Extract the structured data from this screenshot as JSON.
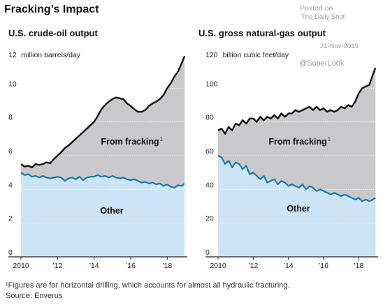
{
  "title": "Fracking’s Impact",
  "watermark": {
    "posted": "Posted on",
    "via": "The Daily Shot",
    "date": "21-Nov-2019",
    "handle": "@SoberLook"
  },
  "footnote": "¹Figures are for horizontal drilling, which accounts for almost all hydraulic fracturing.",
  "source": "Source: Enverus",
  "colors": {
    "fracking_area": "#c9c9cb",
    "other_area": "#cde4f6",
    "total_line": "#111111",
    "other_line": "#1c78b0",
    "axis": "#222222",
    "grid": "#ffffff"
  },
  "chart_data": [
    {
      "type": "area",
      "title": "U.S. crude-oil output",
      "unit_label": "million barrels/day",
      "ylim": [
        0,
        12
      ],
      "yticks": [
        0,
        2,
        4,
        6,
        8,
        10,
        12
      ],
      "xlim": [
        2010,
        2019.1
      ],
      "xticks": [
        2010,
        2012,
        2014,
        2016,
        2018
      ],
      "xtick_labels": [
        "2010",
        "’12",
        "’14",
        "’16",
        "’18"
      ],
      "area_labels": {
        "upper": "From fracking",
        "upper_sup": "1",
        "lower": "Other"
      },
      "series": [
        {
          "name": "From fracking",
          "x": [
            2010.0,
            2010.2,
            2010.4,
            2010.6,
            2010.8,
            2011.0,
            2011.2,
            2011.4,
            2011.6,
            2011.8,
            2012.0,
            2012.2,
            2012.4,
            2012.6,
            2012.8,
            2013.0,
            2013.2,
            2013.4,
            2013.6,
            2013.8,
            2014.0,
            2014.2,
            2014.4,
            2014.6,
            2014.8,
            2015.0,
            2015.2,
            2015.4,
            2015.6,
            2015.8,
            2016.0,
            2016.2,
            2016.4,
            2016.6,
            2016.8,
            2017.0,
            2017.2,
            2017.4,
            2017.6,
            2017.8,
            2018.0,
            2018.2,
            2018.4,
            2018.6,
            2018.8,
            2018.95
          ],
          "values": [
            5.5,
            5.35,
            5.4,
            5.3,
            5.5,
            5.45,
            5.5,
            5.6,
            5.55,
            5.8,
            6.0,
            6.2,
            6.45,
            6.6,
            6.8,
            7.0,
            7.2,
            7.4,
            7.6,
            7.8,
            8.0,
            8.35,
            8.75,
            9.0,
            9.2,
            9.35,
            9.45,
            9.4,
            9.35,
            9.1,
            8.95,
            8.75,
            8.6,
            8.6,
            8.7,
            8.95,
            9.1,
            9.2,
            9.35,
            9.6,
            10.0,
            10.3,
            10.7,
            11.0,
            11.5,
            11.9
          ]
        },
        {
          "name": "Other",
          "x": [
            2010.0,
            2010.2,
            2010.4,
            2010.6,
            2010.8,
            2011.0,
            2011.2,
            2011.4,
            2011.6,
            2011.8,
            2012.0,
            2012.2,
            2012.4,
            2012.6,
            2012.8,
            2013.0,
            2013.2,
            2013.4,
            2013.6,
            2013.8,
            2014.0,
            2014.2,
            2014.4,
            2014.6,
            2014.8,
            2015.0,
            2015.2,
            2015.4,
            2015.6,
            2015.8,
            2016.0,
            2016.2,
            2016.4,
            2016.6,
            2016.8,
            2017.0,
            2017.2,
            2017.4,
            2017.6,
            2017.8,
            2018.0,
            2018.2,
            2018.4,
            2018.6,
            2018.8,
            2018.95
          ],
          "values": [
            5.0,
            4.85,
            4.9,
            4.75,
            4.8,
            4.7,
            4.8,
            4.7,
            4.65,
            4.7,
            4.75,
            4.7,
            4.5,
            4.65,
            4.7,
            4.6,
            4.75,
            4.55,
            4.7,
            4.75,
            4.75,
            4.85,
            4.75,
            4.8,
            4.7,
            4.8,
            4.7,
            4.65,
            4.7,
            4.6,
            4.55,
            4.6,
            4.5,
            4.4,
            4.45,
            4.35,
            4.4,
            4.3,
            4.35,
            4.2,
            4.3,
            4.15,
            4.1,
            4.25,
            4.2,
            4.35
          ]
        }
      ]
    },
    {
      "type": "area",
      "title": "U.S. gross natural-gas output",
      "unit_label": "billion cubic feet/day",
      "ylim": [
        0,
        120
      ],
      "yticks": [
        0,
        20,
        40,
        60,
        80,
        100,
        120
      ],
      "xlim": [
        2010,
        2019.1
      ],
      "xticks": [
        2010,
        2012,
        2014,
        2016,
        2018
      ],
      "xtick_labels": [
        "2010",
        "’12",
        "’14",
        "’16",
        "’18"
      ],
      "area_labels": {
        "upper": "From fracking",
        "upper_sup": "1",
        "lower": "Other"
      },
      "series": [
        {
          "name": "From fracking",
          "x": [
            2010.0,
            2010.2,
            2010.4,
            2010.6,
            2010.8,
            2011.0,
            2011.2,
            2011.4,
            2011.6,
            2011.8,
            2012.0,
            2012.2,
            2012.4,
            2012.6,
            2012.8,
            2013.0,
            2013.2,
            2013.4,
            2013.6,
            2013.8,
            2014.0,
            2014.2,
            2014.4,
            2014.6,
            2014.8,
            2015.0,
            2015.2,
            2015.4,
            2015.6,
            2015.8,
            2016.0,
            2016.2,
            2016.4,
            2016.6,
            2016.8,
            2017.0,
            2017.2,
            2017.4,
            2017.6,
            2017.8,
            2018.0,
            2018.2,
            2018.4,
            2018.6,
            2018.8,
            2018.95
          ],
          "values": [
            75,
            76,
            73,
            77,
            75,
            79,
            78,
            81,
            79,
            82,
            82,
            80,
            83,
            81,
            83,
            82,
            84,
            82,
            85,
            83,
            85,
            85,
            87,
            86,
            87,
            88,
            89,
            87,
            89,
            87,
            88,
            86,
            87,
            86,
            87,
            89,
            88,
            90,
            89,
            92,
            97,
            100,
            101,
            102,
            108,
            112
          ]
        },
        {
          "name": "Other",
          "x": [
            2010.0,
            2010.2,
            2010.4,
            2010.6,
            2010.8,
            2011.0,
            2011.2,
            2011.4,
            2011.6,
            2011.8,
            2012.0,
            2012.2,
            2012.4,
            2012.6,
            2012.8,
            2013.0,
            2013.2,
            2013.4,
            2013.6,
            2013.8,
            2014.0,
            2014.2,
            2014.4,
            2014.6,
            2014.8,
            2015.0,
            2015.2,
            2015.4,
            2015.6,
            2015.8,
            2016.0,
            2016.2,
            2016.4,
            2016.6,
            2016.8,
            2017.0,
            2017.2,
            2017.4,
            2017.6,
            2017.8,
            2018.0,
            2018.2,
            2018.4,
            2018.6,
            2018.8,
            2018.95
          ],
          "values": [
            60,
            59,
            55,
            57,
            53,
            56,
            55,
            52,
            54,
            49,
            50,
            48,
            46,
            48,
            44,
            45,
            46,
            43,
            45,
            44,
            42,
            43,
            42,
            41,
            43,
            40,
            42,
            41,
            39,
            40,
            39,
            38,
            37,
            38,
            37,
            36,
            37,
            36,
            35,
            34,
            35,
            33,
            34,
            33,
            34,
            35
          ]
        }
      ]
    }
  ]
}
